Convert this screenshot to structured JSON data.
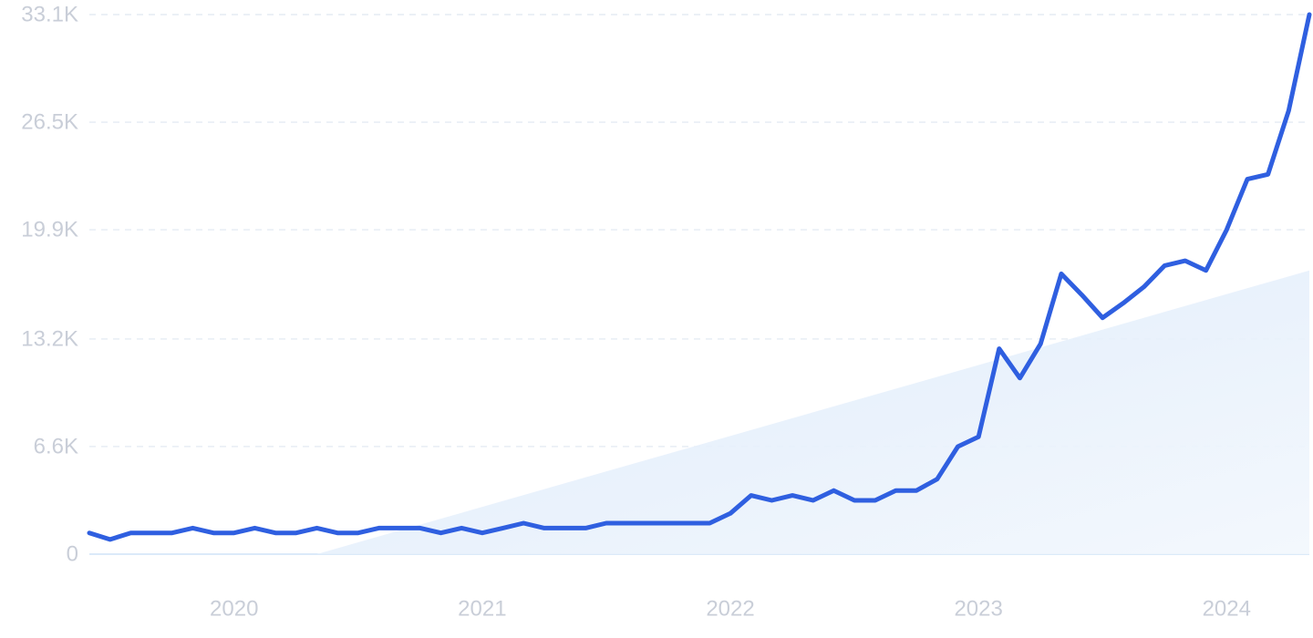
{
  "chart_data": {
    "type": "line",
    "x_label": "",
    "y_label": "",
    "ylim": [
      0,
      33100
    ],
    "y_ticks": [
      {
        "value": 0,
        "label": "0"
      },
      {
        "value": 6600,
        "label": "6.6K"
      },
      {
        "value": 13200,
        "label": "13.2K"
      },
      {
        "value": 19900,
        "label": "19.9K"
      },
      {
        "value": 26500,
        "label": "26.5K"
      },
      {
        "value": 33100,
        "label": "33.1K"
      }
    ],
    "x_ticks": [
      {
        "value": "2020-01",
        "label": "2020"
      },
      {
        "value": "2021-01",
        "label": "2021"
      },
      {
        "value": "2022-01",
        "label": "2022"
      },
      {
        "value": "2023-01",
        "label": "2023"
      },
      {
        "value": "2024-01",
        "label": "2024"
      }
    ],
    "grid": true,
    "x": [
      "2019-06",
      "2019-07",
      "2019-08",
      "2019-09",
      "2019-10",
      "2019-11",
      "2019-12",
      "2020-01",
      "2020-02",
      "2020-03",
      "2020-04",
      "2020-05",
      "2020-06",
      "2020-07",
      "2020-08",
      "2020-09",
      "2020-10",
      "2020-11",
      "2020-12",
      "2021-01",
      "2021-02",
      "2021-03",
      "2021-04",
      "2021-05",
      "2021-06",
      "2021-07",
      "2021-08",
      "2021-09",
      "2021-10",
      "2021-11",
      "2021-12",
      "2022-01",
      "2022-02",
      "2022-03",
      "2022-04",
      "2022-05",
      "2022-06",
      "2022-07",
      "2022-08",
      "2022-09",
      "2022-10",
      "2022-11",
      "2022-12",
      "2023-01",
      "2023-02",
      "2023-03",
      "2023-04",
      "2023-05",
      "2023-06",
      "2023-07",
      "2023-08",
      "2023-09",
      "2023-10",
      "2023-11",
      "2023-12",
      "2024-01",
      "2024-02",
      "2024-03",
      "2024-04",
      "2024-05"
    ],
    "series": [
      {
        "values": [
          1300,
          900,
          1300,
          1300,
          1300,
          1600,
          1300,
          1300,
          1600,
          1300,
          1300,
          1600,
          1300,
          1300,
          1600,
          1600,
          1600,
          1300,
          1600,
          1300,
          1600,
          1900,
          1600,
          1600,
          1600,
          1900,
          1900,
          1900,
          1900,
          1900,
          1900,
          2500,
          3600,
          3300,
          3600,
          3300,
          3900,
          3300,
          3300,
          3900,
          3900,
          4600,
          6600,
          7200,
          12600,
          10800,
          12900,
          17200,
          15900,
          14500,
          15400,
          16400,
          17700,
          18000,
          17400,
          19900,
          23000,
          23300,
          27200,
          33100
        ]
      }
    ],
    "trend_area": {
      "start": {
        "x": "2020-05",
        "y": 0
      },
      "end": {
        "x": "2024-05",
        "y": 17400
      }
    }
  }
}
